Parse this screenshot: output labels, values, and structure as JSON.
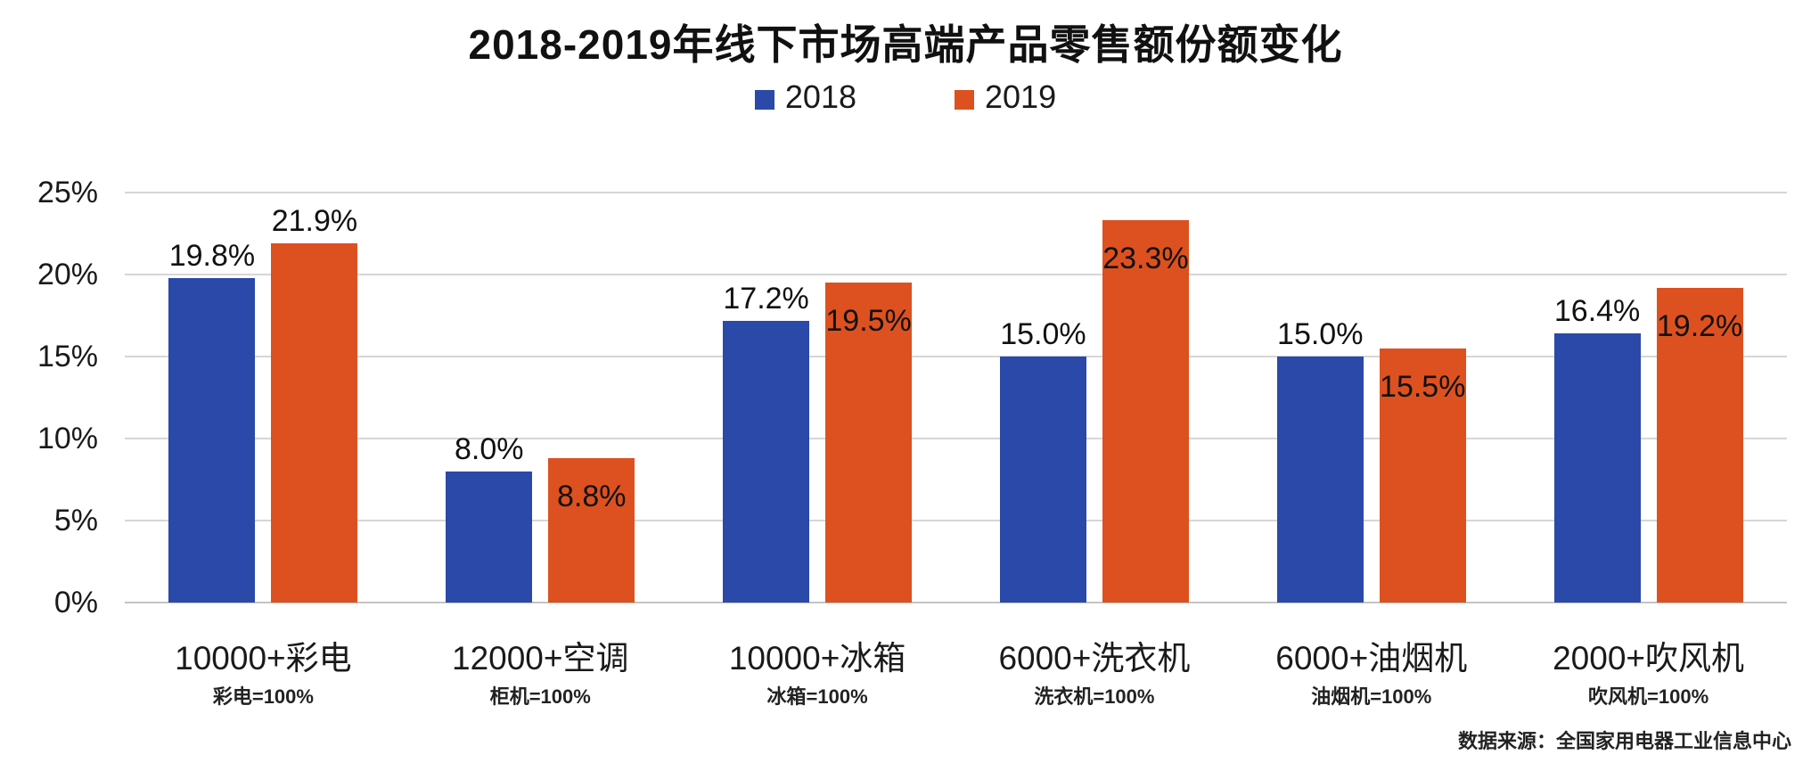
{
  "title": "2018-2019年线下市场高端产品零售额份额变化",
  "legend": [
    {
      "label": "2018",
      "color": "#2B49A8"
    },
    {
      "label": "2019",
      "color": "#DD5120"
    }
  ],
  "source": "数据来源：全国家用电器工业信息中心",
  "colors": {
    "series2018": "#2B49A8",
    "series2019": "#DD5120",
    "gridline": "#d6d6d6",
    "text": "#1a1a1a"
  },
  "chart_data": {
    "type": "bar",
    "title": "2018-2019年线下市场高端产品零售额份额变化",
    "categories": [
      "10000+彩电",
      "12000+空调",
      "10000+冰箱",
      "6000+洗衣机",
      "6000+油烟机",
      "2000+吹风机"
    ],
    "category_notes": [
      "彩电=100%",
      "柜机=100%",
      "冰箱=100%",
      "洗衣机=100%",
      "油烟机=100%",
      "吹风机=100%"
    ],
    "series": [
      {
        "name": "2018",
        "color": "#2B49A8",
        "values": [
          19.8,
          8.0,
          17.2,
          15.0,
          15.0,
          16.4
        ],
        "value_labels": [
          "19.8%",
          "8.0%",
          "17.2%",
          "15.0%",
          "15.0%",
          "16.4%"
        ],
        "label_placement": [
          "above",
          "above",
          "above",
          "above",
          "above",
          "above"
        ]
      },
      {
        "name": "2019",
        "color": "#DD5120",
        "values": [
          21.9,
          8.8,
          19.5,
          23.3,
          15.5,
          19.2
        ],
        "value_labels": [
          "21.9%",
          "8.8%",
          "19.5%",
          "23.3%",
          "15.5%",
          "19.2%"
        ],
        "label_placement": [
          "above",
          "inside",
          "inside",
          "inside",
          "inside",
          "inside"
        ]
      }
    ],
    "xlabel": "",
    "ylabel": "",
    "yticks": [
      "25%",
      "20%",
      "15%",
      "10%",
      "5%",
      "0%"
    ],
    "ytick_values": [
      25,
      20,
      15,
      10,
      5,
      0
    ],
    "ylim": [
      0,
      25
    ],
    "grid": true,
    "legend_position": "top-center"
  }
}
